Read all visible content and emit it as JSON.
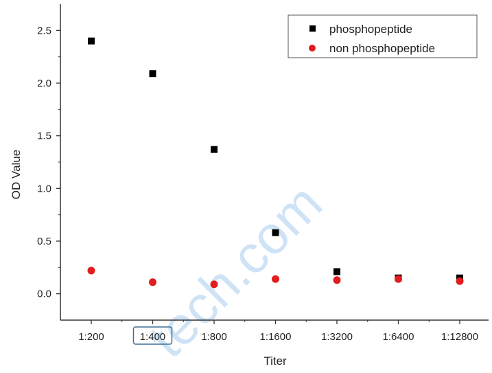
{
  "chart_data": {
    "type": "scatter",
    "categories": [
      "1:200",
      "1:400",
      "1:800",
      "1:1600",
      "1:3200",
      "1:6400",
      "1:12800"
    ],
    "series": [
      {
        "name": "phosphopeptide",
        "marker": "square",
        "color": "#000000",
        "values": [
          2.4,
          2.09,
          1.37,
          0.58,
          0.21,
          0.15,
          0.15
        ]
      },
      {
        "name": "non phosphopeptide",
        "marker": "circle",
        "color": "#e11d1d",
        "values": [
          0.22,
          0.11,
          0.09,
          0.14,
          0.13,
          0.14,
          0.12
        ]
      }
    ],
    "xlabel": "Titer",
    "ylabel": "OD Value",
    "ylim": [
      -0.25,
      2.75
    ],
    "yticks": [
      "0.0",
      "0.5",
      "1.0",
      "1.5",
      "2.0",
      "2.5"
    ],
    "highlighted_category": "1:400",
    "grid": false,
    "legend_position": "top-right",
    "watermark": "tech.com"
  }
}
